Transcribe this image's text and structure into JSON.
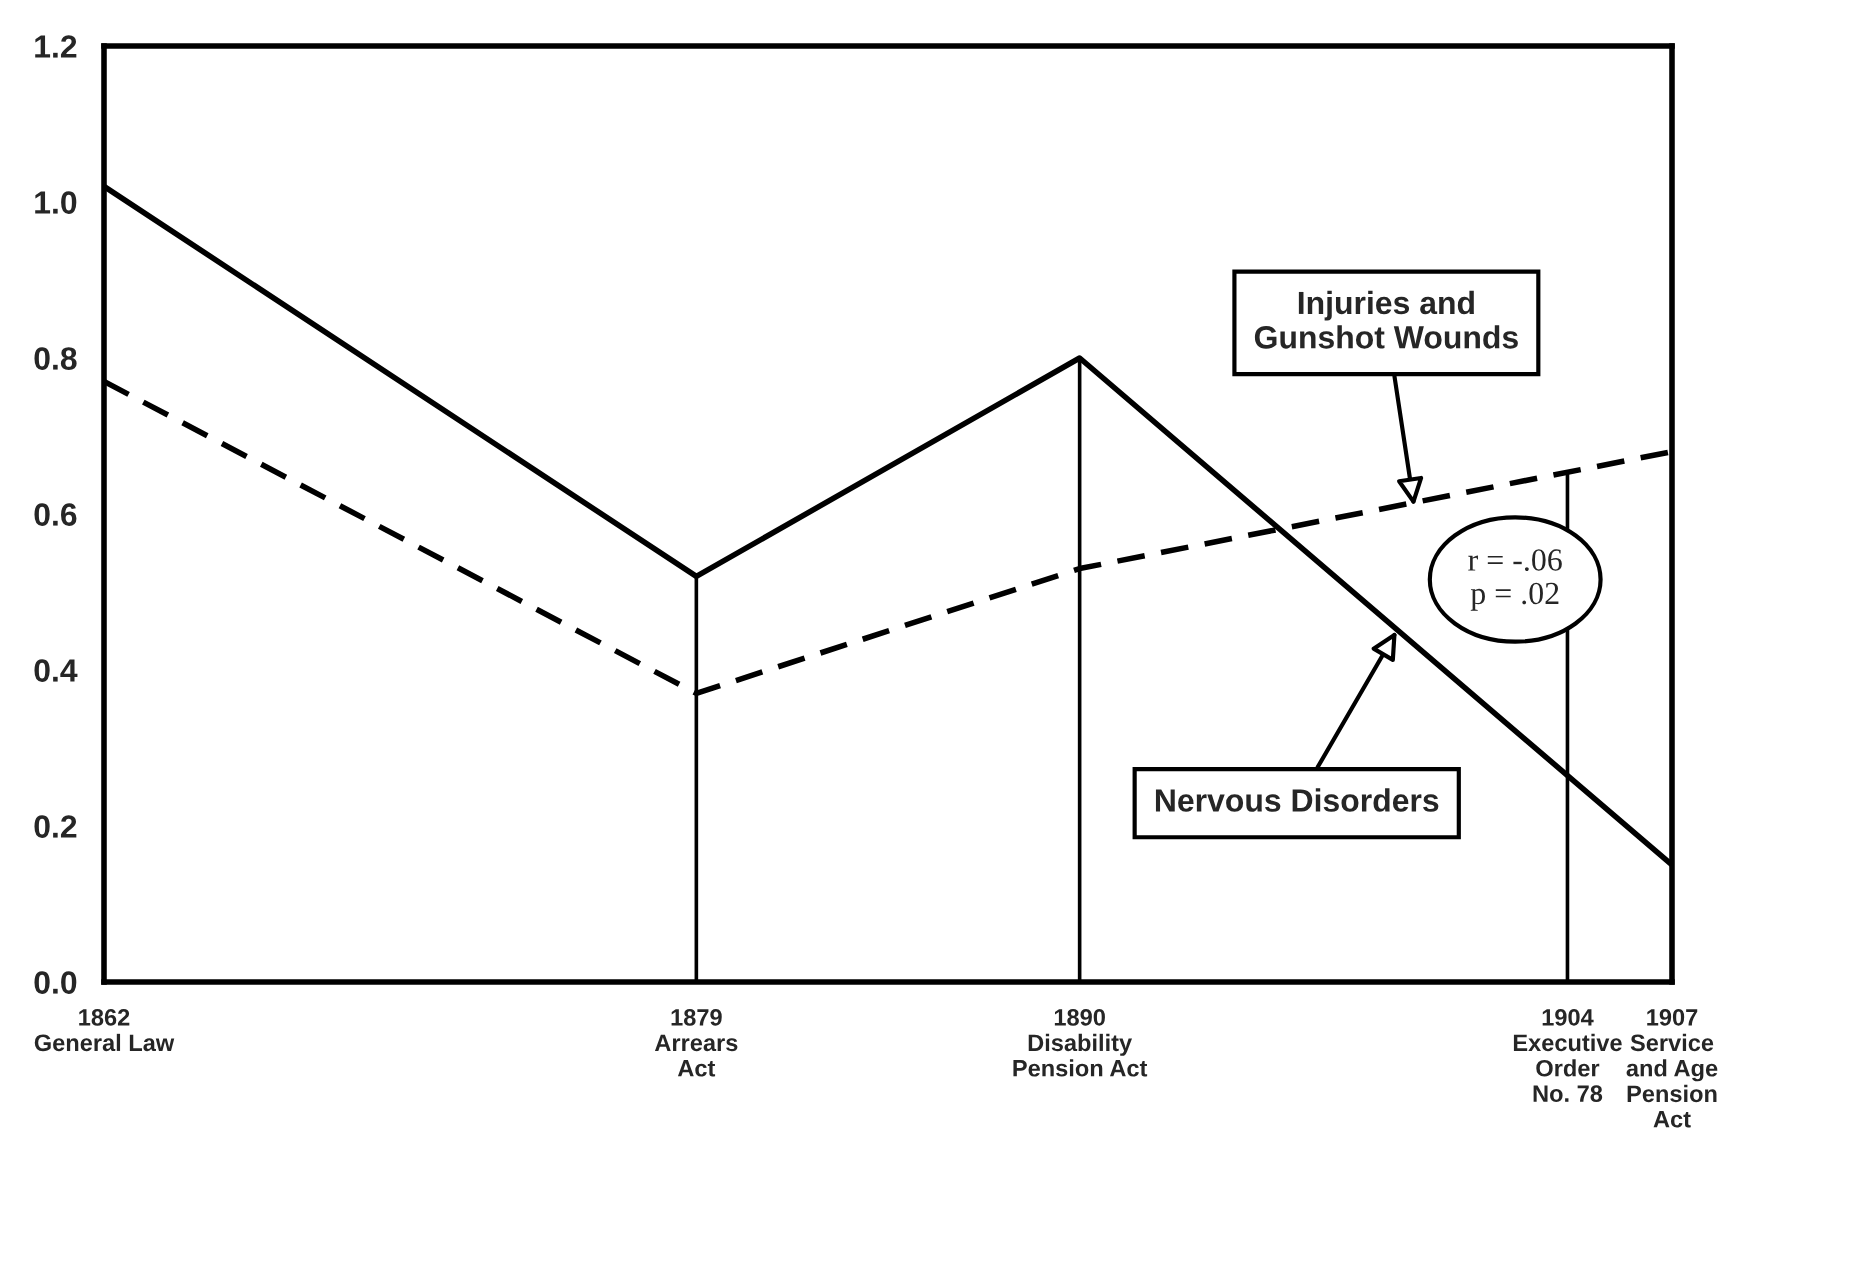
{
  "chart_data": {
    "type": "line",
    "x": [
      1862,
      1879,
      1890,
      1907
    ],
    "series": [
      {
        "color": "#000000",
        "line_style": "solid",
        "values": [
          1.02,
          0.52,
          0.8,
          0.15
        ]
      },
      {
        "color": "#000000",
        "line_style": "dashed",
        "values": [
          0.77,
          0.37,
          0.53,
          0.68
        ]
      }
    ],
    "xlim": [
      1862,
      1907
    ],
    "xticks": [
      {
        "value": 1862,
        "label": "1862\nGeneral Law"
      },
      {
        "value": 1879,
        "label": "1879\nArrears\nAct"
      },
      {
        "value": 1890,
        "label": "1890\nDisability\nPension Act"
      },
      {
        "value": 1904,
        "label": "1904\nExecutive\nOrder\nNo. 78"
      },
      {
        "value": 1907,
        "label": "1907\nService\nand Age\nPension\nAct"
      }
    ],
    "ylim": [
      0,
      1.2
    ],
    "yticks": [
      {
        "value": 0,
        "label": "0.0"
      },
      {
        "value": 0.2,
        "label": "0.2"
      },
      {
        "value": 0.4,
        "label": "0.4"
      },
      {
        "value": 0.6,
        "label": "0.6"
      },
      {
        "value": 0.8,
        "label": "0.8"
      },
      {
        "value": 1.0,
        "label": "1.0"
      },
      {
        "value": 1.2,
        "label": "1.2"
      }
    ],
    "ref_lines": [
      {
        "axis": "x",
        "value": 1879
      },
      {
        "axis": "x",
        "value": 1890
      },
      {
        "axis": "x",
        "value": 1904
      }
    ],
    "annotations": [
      {
        "text": "Injuries and\nGunshot Wounds",
        "x": 1899.6,
        "y": 0.61
      },
      {
        "text": "Nervous Disorders",
        "x": 1899.1,
        "y": 0.45
      },
      "r = -.06\np = .02"
    ],
    "grid": false,
    "legend": false,
    "marker": "none"
  }
}
